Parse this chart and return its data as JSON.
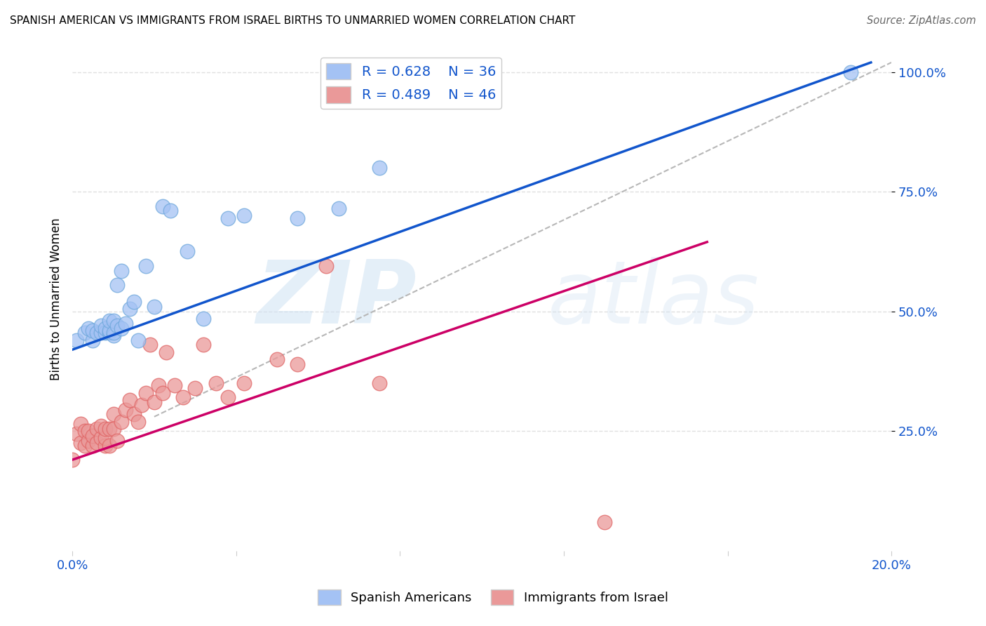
{
  "title": "SPANISH AMERICAN VS IMMIGRANTS FROM ISRAEL BIRTHS TO UNMARRIED WOMEN CORRELATION CHART",
  "source": "Source: ZipAtlas.com",
  "ylabel": "Births to Unmarried Women",
  "xlim": [
    0.0,
    0.2
  ],
  "ylim": [
    0.0,
    1.05
  ],
  "ytick_values": [
    0.25,
    0.5,
    0.75,
    1.0
  ],
  "ytick_labels": [
    "25.0%",
    "50.0%",
    "75.0%",
    "100.0%"
  ],
  "xtick_values": [
    0.0,
    0.04,
    0.08,
    0.12,
    0.16,
    0.2
  ],
  "xtick_labels": [
    "0.0%",
    "",
    "",
    "",
    "",
    "20.0%"
  ],
  "blue_R": 0.628,
  "blue_N": 36,
  "pink_R": 0.489,
  "pink_N": 46,
  "blue_color": "#a4c2f4",
  "pink_color": "#ea9999",
  "blue_scatter_edge": "#6fa8dc",
  "pink_scatter_edge": "#e06666",
  "blue_line_color": "#1155cc",
  "pink_line_color": "#cc0066",
  "diag_color": "#b7b7b7",
  "watermark_zip": "ZIP",
  "watermark_atlas": "atlas",
  "legend_label_blue": "Spanish Americans",
  "legend_label_pink": "Immigrants from Israel",
  "blue_scatter_x": [
    0.001,
    0.003,
    0.004,
    0.005,
    0.005,
    0.006,
    0.007,
    0.007,
    0.008,
    0.008,
    0.009,
    0.009,
    0.009,
    0.01,
    0.01,
    0.01,
    0.011,
    0.011,
    0.012,
    0.012,
    0.013,
    0.014,
    0.015,
    0.016,
    0.018,
    0.02,
    0.022,
    0.024,
    0.028,
    0.032,
    0.038,
    0.042,
    0.055,
    0.065,
    0.075,
    0.19
  ],
  "blue_scatter_y": [
    0.44,
    0.455,
    0.465,
    0.44,
    0.46,
    0.455,
    0.455,
    0.47,
    0.455,
    0.465,
    0.455,
    0.46,
    0.48,
    0.45,
    0.455,
    0.48,
    0.555,
    0.47,
    0.465,
    0.585,
    0.475,
    0.505,
    0.52,
    0.44,
    0.595,
    0.51,
    0.72,
    0.71,
    0.625,
    0.485,
    0.695,
    0.7,
    0.695,
    0.715,
    0.8,
    1.0
  ],
  "pink_scatter_x": [
    0.0,
    0.001,
    0.002,
    0.002,
    0.003,
    0.003,
    0.004,
    0.004,
    0.005,
    0.005,
    0.006,
    0.006,
    0.007,
    0.007,
    0.008,
    0.008,
    0.008,
    0.009,
    0.009,
    0.01,
    0.01,
    0.011,
    0.012,
    0.013,
    0.014,
    0.015,
    0.016,
    0.017,
    0.018,
    0.019,
    0.02,
    0.021,
    0.022,
    0.023,
    0.025,
    0.027,
    0.03,
    0.032,
    0.035,
    0.038,
    0.042,
    0.05,
    0.055,
    0.062,
    0.075,
    0.13
  ],
  "pink_scatter_y": [
    0.19,
    0.245,
    0.225,
    0.265,
    0.22,
    0.25,
    0.23,
    0.25,
    0.22,
    0.24,
    0.225,
    0.255,
    0.235,
    0.26,
    0.22,
    0.235,
    0.255,
    0.22,
    0.255,
    0.255,
    0.285,
    0.23,
    0.27,
    0.295,
    0.315,
    0.285,
    0.27,
    0.305,
    0.33,
    0.43,
    0.31,
    0.345,
    0.33,
    0.415,
    0.345,
    0.32,
    0.34,
    0.43,
    0.35,
    0.32,
    0.35,
    0.4,
    0.39,
    0.595,
    0.35,
    0.06
  ],
  "blue_line_x": [
    0.0,
    0.195
  ],
  "blue_line_y": [
    0.42,
    1.02
  ],
  "pink_line_x": [
    0.0,
    0.155
  ],
  "pink_line_y": [
    0.19,
    0.645
  ],
  "diag_line_x": [
    0.02,
    0.2
  ],
  "diag_line_y": [
    0.28,
    1.02
  ],
  "background_color": "#ffffff",
  "grid_color": "#e0e0e0",
  "grid_style": "--"
}
